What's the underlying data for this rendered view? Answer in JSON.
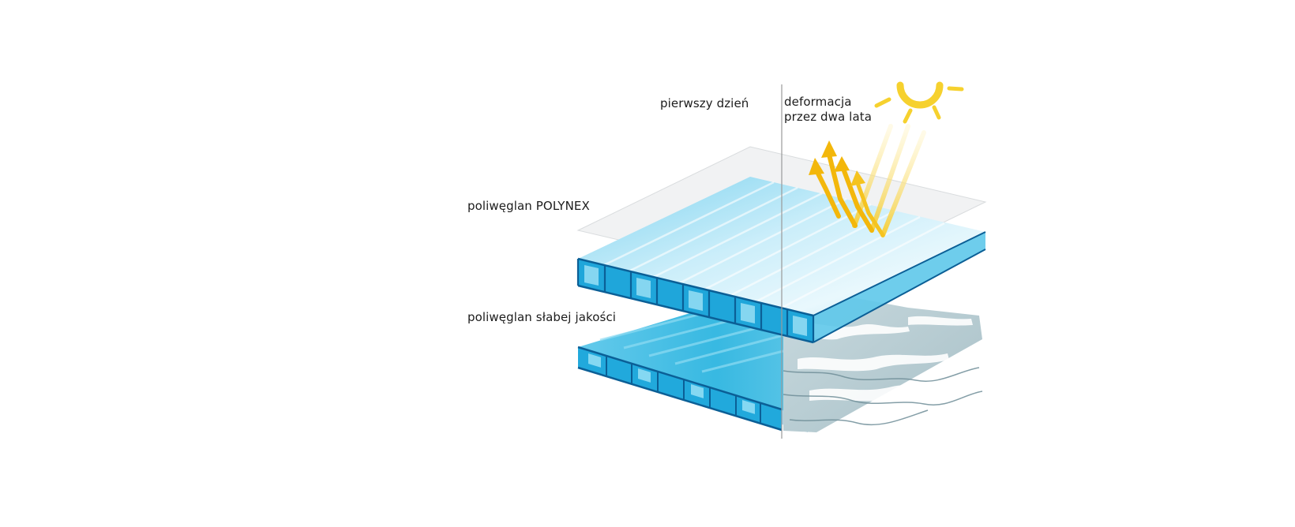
{
  "labels": {
    "first_day": "pierwszy dzień",
    "deformation_line1": "deformacja",
    "deformation_line2": "przez dwa lata",
    "polynex": "poliwęglan POLYNEX",
    "low_quality": "poliwęglan słabej jakości"
  },
  "colors": {
    "background": "#ffffff",
    "sheet_blue": "#29b6dd",
    "sheet_blue_dark": "#0f6fa8",
    "sheet_light": "#bfe8f5",
    "film": "#f2f3f4",
    "sun": "#f6cf2a",
    "ray": "#f4c20d",
    "degraded": "#9fb8c0",
    "divider": "#9a9a9a"
  },
  "icons": {
    "sun": "sun-icon",
    "rays": "sunlight-rays-icon"
  }
}
